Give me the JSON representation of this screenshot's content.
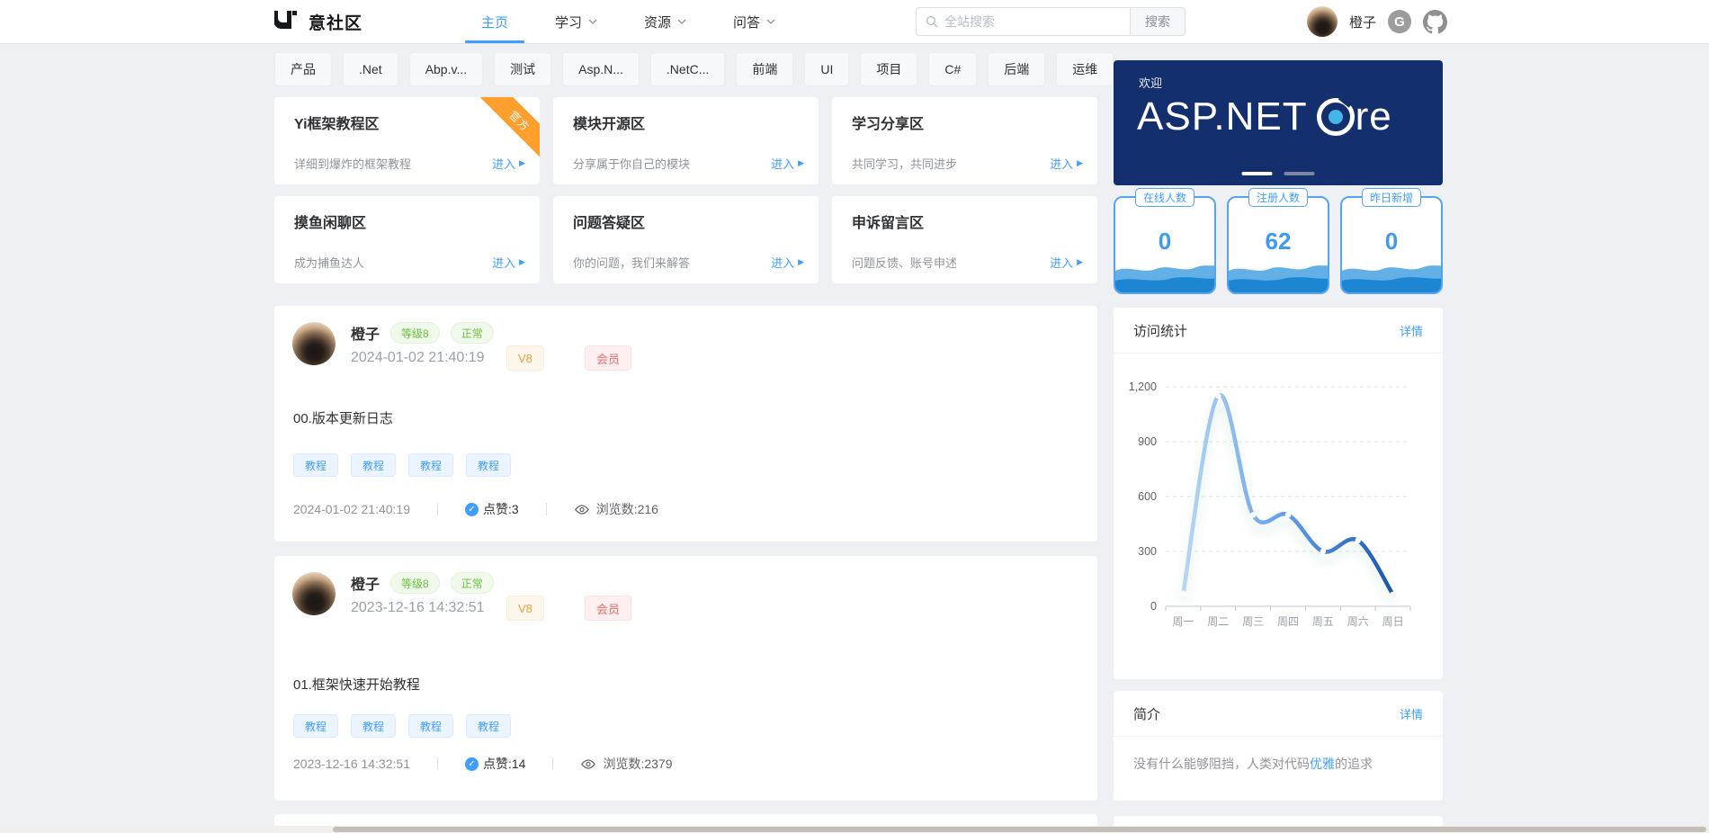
{
  "navbar": {
    "brand": "意社区",
    "items": [
      {
        "label": "主页",
        "active": true
      },
      {
        "label": "学习",
        "dropdown": true
      },
      {
        "label": "资源",
        "dropdown": true
      },
      {
        "label": "问答",
        "dropdown": true
      }
    ],
    "search": {
      "placeholder": "全站搜索",
      "button": "搜索"
    },
    "user": {
      "name": "橙子"
    }
  },
  "ui": {
    "enter": "进入",
    "detail": "详情",
    "gitee_glyph": "G"
  },
  "tags": [
    "产品",
    ".Net",
    "Abp.v...",
    "测试",
    "Asp.N...",
    ".NetC...",
    "前端",
    "UI",
    "项目",
    "C#",
    "后端",
    "运维"
  ],
  "zones": [
    {
      "title": "Yi框架教程区",
      "desc": "详细到爆炸的框架教程",
      "ribbon": "官方"
    },
    {
      "title": "模块开源区",
      "desc": "分享属于你自己的模块"
    },
    {
      "title": "学习分享区",
      "desc": "共同学习，共同进步"
    },
    {
      "title": "摸鱼闲聊区",
      "desc": "成为捕鱼达人"
    },
    {
      "title": "问题答疑区",
      "desc": "你的问题，我们来解答"
    },
    {
      "title": "申诉留言区",
      "desc": "问题反馈、账号申述"
    }
  ],
  "posts": [
    {
      "author": "橙子",
      "level": "等级8",
      "status": "正常",
      "vip": "V8",
      "member": "会员",
      "datetime": "2024-01-02 21:40:19",
      "title": "00.版本更新日志",
      "tags": [
        "教程",
        "教程",
        "教程",
        "教程"
      ],
      "likes": "点赞:3",
      "views": "浏览数:216"
    },
    {
      "author": "橙子",
      "level": "等级8",
      "status": "正常",
      "vip": "V8",
      "member": "会员",
      "datetime": "2023-12-16 14:32:51",
      "title": "01.框架快速开始教程",
      "tags": [
        "教程",
        "教程",
        "教程",
        "教程"
      ],
      "likes": "点赞:14",
      "views": "浏览数:2379"
    }
  ],
  "sidebar": {
    "banner": {
      "welcome": "欢迎",
      "brand": "ASP.NET Core",
      "brand_pre": "ASP.NET",
      "brand_post": "re"
    },
    "stats": [
      {
        "label": "在线人数",
        "value": "0"
      },
      {
        "label": "注册人数",
        "value": "62"
      },
      {
        "label": "昨日新增",
        "value": "0"
      }
    ],
    "visits": {
      "title": "访问统计"
    },
    "intro": {
      "title": "简介",
      "text_before": "没有什么能够阻挡，人类对代码",
      "highlight": "优雅",
      "text_after": "的追求"
    }
  },
  "chart_data": {
    "type": "line",
    "title": "访问统计",
    "categories": [
      "周一",
      "周二",
      "周三",
      "周四",
      "周五",
      "周六",
      "周日"
    ],
    "values": [
      70,
      1150,
      500,
      500,
      300,
      360,
      65
    ],
    "xlabel": "",
    "ylabel": "",
    "ylim": [
      0,
      1200
    ],
    "yticks": [
      0,
      300,
      600,
      900,
      1200
    ],
    "grid": true,
    "legend": false,
    "line_gradient": [
      "#b9d6f2",
      "#5f9de8",
      "#1c55ae"
    ]
  },
  "colors": {
    "primary": "#409eff",
    "success": "#67c23a",
    "warning": "#e6a23c",
    "danger": "#f56c6c",
    "banner_bg": "#142f6d",
    "ribbon": "#ffa02e",
    "page_bg": "#eef0f4"
  }
}
